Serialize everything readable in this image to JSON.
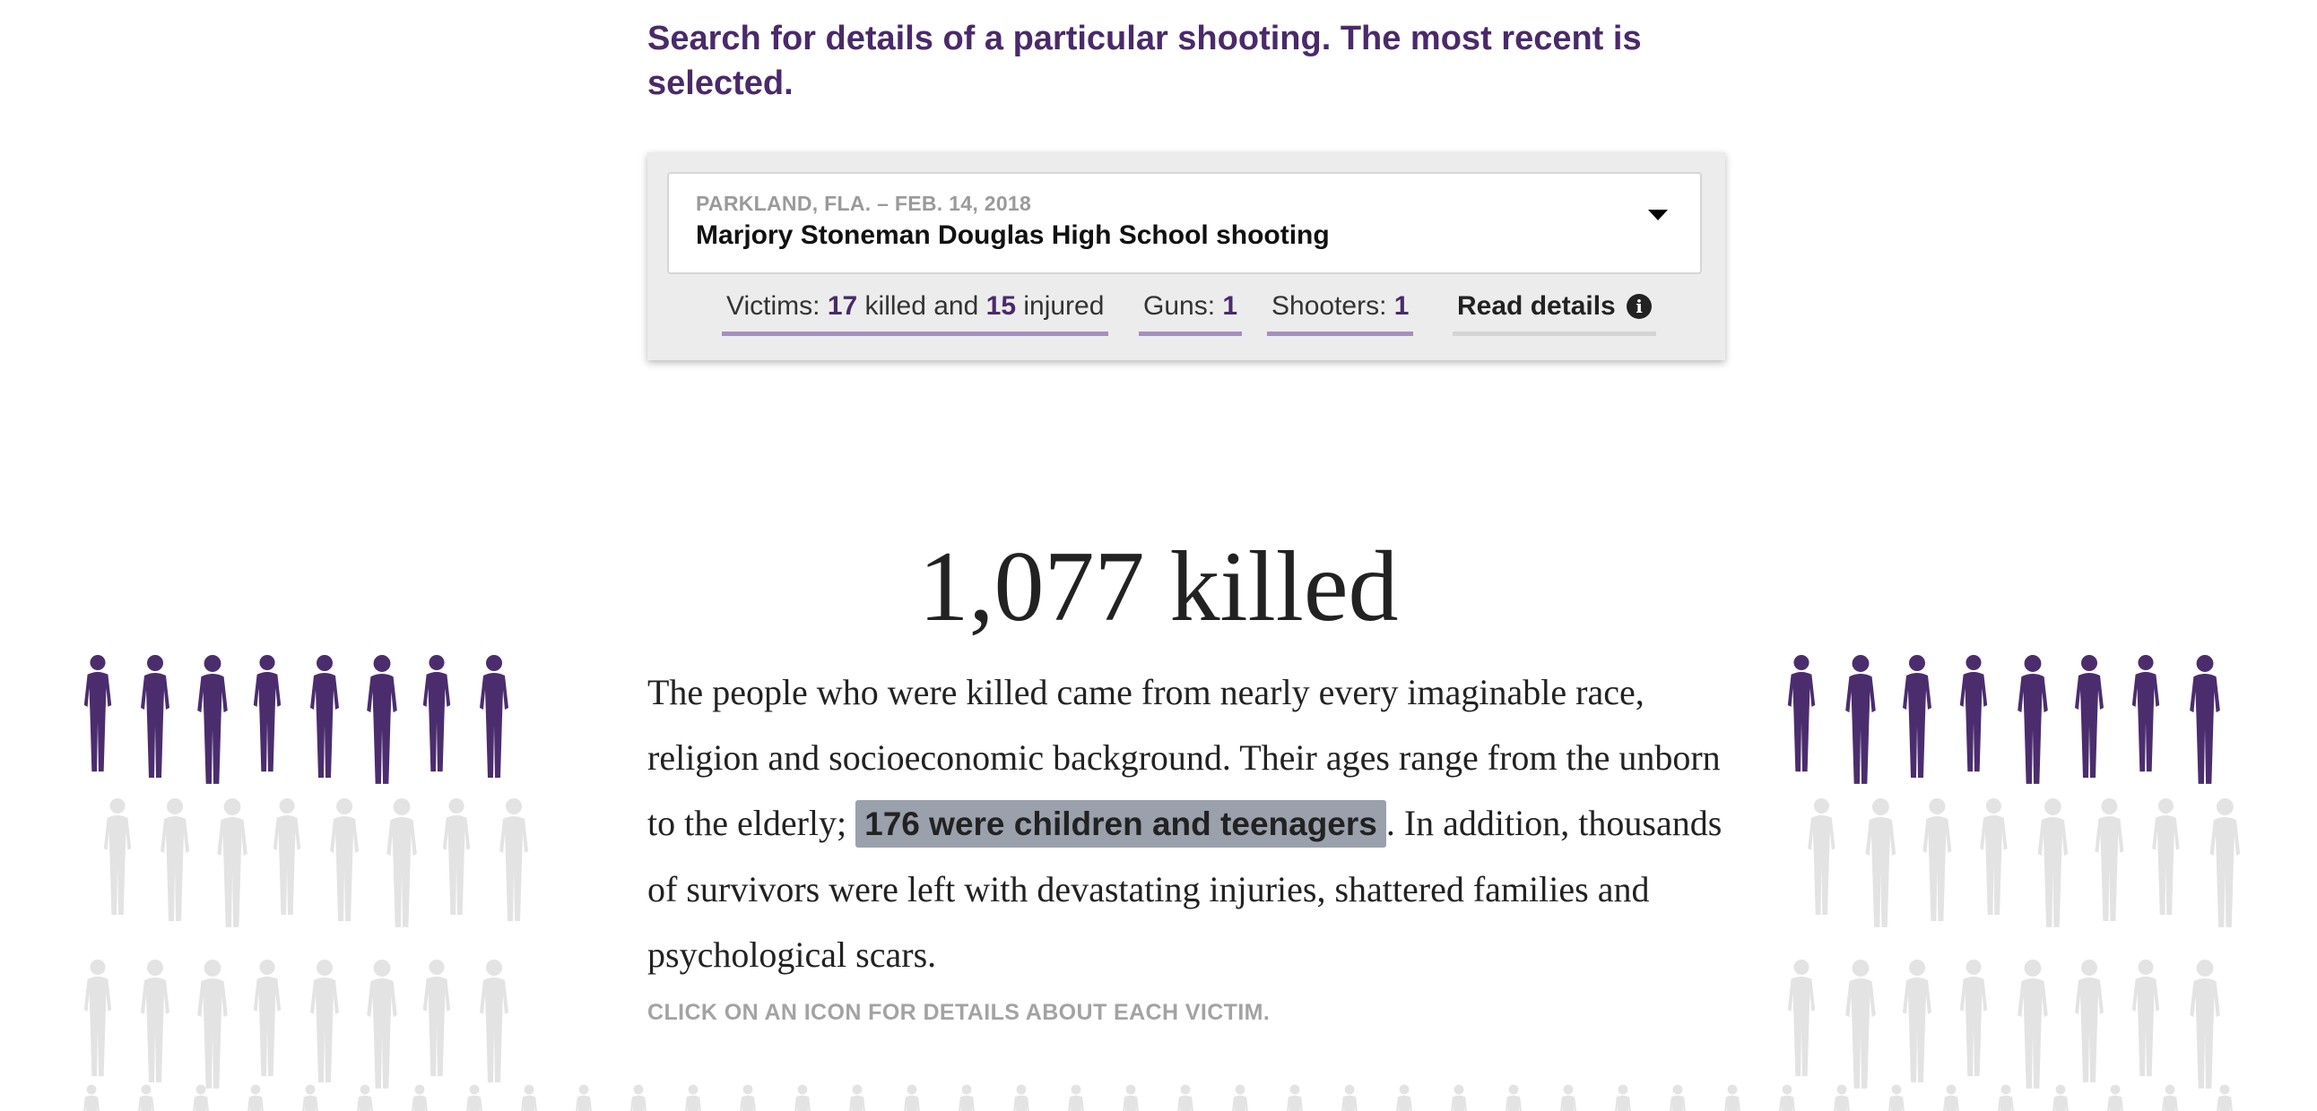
{
  "search": {
    "heading": "Search for details of a particular shooting. The most recent is selected."
  },
  "selector": {
    "meta": "PARKLAND, FLA. – FEB. 14, 2018",
    "title": "Marjory Stoneman Douglas High School shooting"
  },
  "stats": {
    "victims_label": "Victims:",
    "killed": "17",
    "killed_suffix": "killed and",
    "injured": "15",
    "injured_suffix": "injured",
    "guns_label": "Guns:",
    "guns": "1",
    "shooters_label": "Shooters:",
    "shooters": "1",
    "details_label": "Read details"
  },
  "main": {
    "big_stat": "1,077 killed",
    "text_part1": "The people who were killed came from nearly every imaginable race, religion and socioeconomic background. Their ages range from the unborn to the elderly; ",
    "highlight": "176 were children and teenagers",
    "text_part2": ". In addition, thousands of survivors were left with devastating injuries, shattered families and psychological scars.",
    "click_note": "CLICK ON AN ICON FOR DETAILS ABOUT EACH VICTIM."
  },
  "colors": {
    "accent_purple": "#4a2a6a",
    "figure_purple": "#4b2d6e",
    "figure_gray": "#e3e3e3",
    "highlight_bg": "#9aa0ac"
  },
  "icons": {
    "dropdown": "chevron-down-icon",
    "info": "info-icon",
    "victim": "person-silhouette-icon"
  }
}
